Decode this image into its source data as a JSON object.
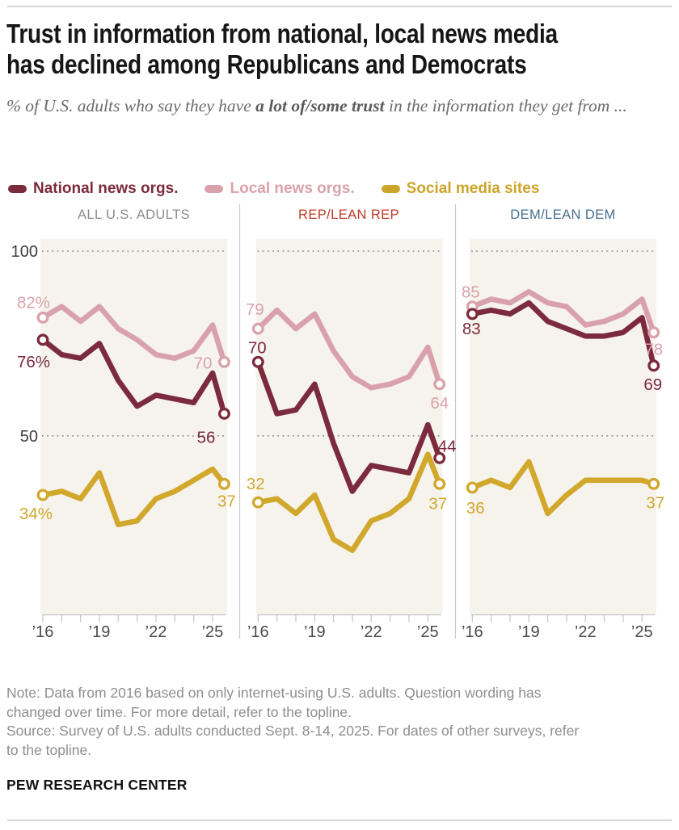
{
  "header": {
    "title_lines": [
      "Trust in information from national, local news media",
      "has declined among Republicans and Democrats"
    ],
    "subtitle_segments": [
      {
        "text": "% of U.S. adults who say they have ",
        "bold": false
      },
      {
        "text": "a lot of/some trust",
        "bold": true
      },
      {
        "text": " in the information they get from ...",
        "bold": false
      }
    ]
  },
  "legend": {
    "items": [
      {
        "label": "National news orgs.",
        "color": "#7B2B3B"
      },
      {
        "label": "Local news orgs.",
        "color": "#D9A2AB"
      },
      {
        "label": "Social media sites",
        "color": "#CDA42B"
      }
    ]
  },
  "chart_data": {
    "type": "line",
    "title": "Trust in information from national, local news media has declined among Republicans and Democrats",
    "subtitle": "% of U.S. adults who say they have a lot of/some trust in the information they get from ...",
    "x_years": [
      2016,
      2017,
      2018,
      2019,
      2020,
      2021,
      2022,
      2023,
      2024,
      2025,
      2025.62
    ],
    "x_tick_years": [
      2016,
      2017,
      2018,
      2019,
      2020,
      2021,
      2022,
      2023,
      2024,
      2025
    ],
    "x_tick_labels": [
      "’16",
      "",
      "",
      "’19",
      "",
      "",
      "’22",
      "",
      "",
      "’25"
    ],
    "ylim": [
      0,
      103
    ],
    "y_gridlines": [
      100,
      50
    ],
    "y_axis_tick_labels": [
      "100",
      "50"
    ],
    "grid": "dotted",
    "legend_position": "top",
    "series_meta": [
      {
        "id": "national",
        "name": "National news orgs.",
        "color": "#7B2B3B"
      },
      {
        "id": "local",
        "name": "Local news orgs.",
        "color": "#D9A2AB"
      },
      {
        "id": "social",
        "name": "Social media sites",
        "color": "#D1A72C"
      }
    ],
    "panels": [
      {
        "title": "ALL U.S. ADULTS",
        "title_color": "#8C8C8C",
        "series": [
          {
            "id": "national",
            "values": [
              76,
              72,
              71,
              75,
              65,
              58,
              61,
              60,
              59,
              67,
              56
            ],
            "start_label": "76%",
            "end_label": "56"
          },
          {
            "id": "local",
            "values": [
              82,
              85,
              81,
              85,
              79,
              76,
              72,
              71,
              73,
              80,
              70
            ],
            "start_label": "82%",
            "end_label": "70"
          },
          {
            "id": "social",
            "values": [
              34,
              35,
              33,
              40,
              26,
              27,
              33,
              35,
              38,
              41,
              37
            ],
            "start_label": "34%",
            "end_label": "37"
          }
        ]
      },
      {
        "title": "REP/LEAN REP",
        "title_color": "#BF3927",
        "series": [
          {
            "id": "national",
            "values": [
              70,
              56,
              57,
              64,
              48,
              35,
              42,
              41,
              40,
              53,
              44
            ],
            "start_label": "70",
            "end_label": "44"
          },
          {
            "id": "local",
            "values": [
              79,
              84,
              79,
              83,
              73,
              66,
              63,
              64,
              66,
              74,
              64
            ],
            "start_label": "79",
            "end_label": "64"
          },
          {
            "id": "social",
            "values": [
              32,
              33,
              29,
              34,
              22,
              19,
              27,
              29,
              33,
              45,
              37
            ],
            "start_label": "32",
            "end_label": "37"
          }
        ]
      },
      {
        "title": "DEM/LEAN DEM",
        "title_color": "#45708F",
        "series": [
          {
            "id": "national",
            "values": [
              83,
              84,
              83,
              86,
              81,
              79,
              77,
              77,
              78,
              82,
              69
            ],
            "start_label": "83",
            "end_label": "69"
          },
          {
            "id": "local",
            "values": [
              85,
              87,
              86,
              89,
              86,
              85,
              80,
              81,
              83,
              87,
              78
            ],
            "start_label": "85",
            "end_label": "78"
          },
          {
            "id": "social",
            "values": [
              36,
              38,
              36,
              43,
              29,
              34,
              38,
              38,
              38,
              38,
              37
            ],
            "start_label": "36",
            "end_label": "37"
          }
        ]
      }
    ]
  },
  "footer": {
    "note_lines": [
      "Note: Data from 2016 based on only internet-using U.S. adults. Question wording has",
      "changed over time. For more detail, refer to the topline."
    ],
    "source_lines": [
      "Source: Survey of U.S. adults conducted Sept. 8-14, 2025. For dates of other surveys, refer",
      "to the topline."
    ],
    "brand": "PEW RESEARCH CENTER"
  }
}
